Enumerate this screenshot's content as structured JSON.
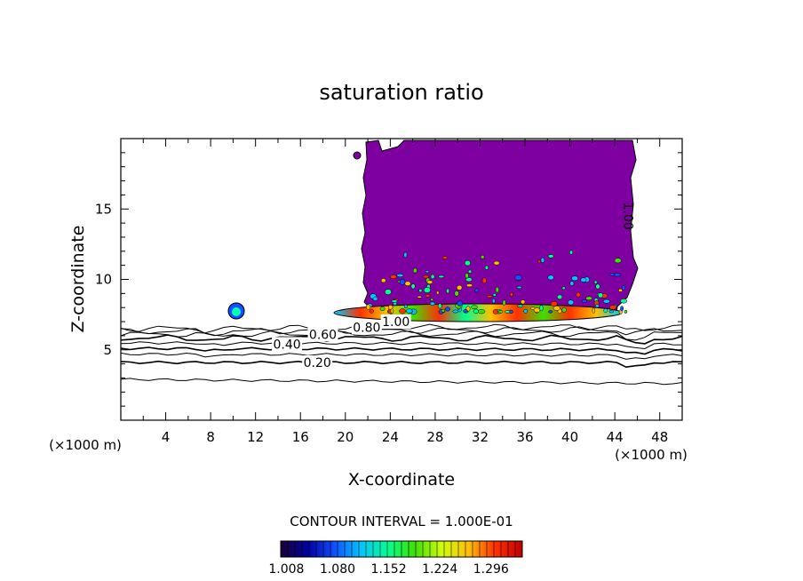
{
  "chart_data": {
    "type": "contour",
    "title": "saturation ratio",
    "xlabel": "X-coordinate",
    "ylabel": "Z-coordinate",
    "x_unit_left": "(×1000 m)",
    "x_unit_right": "(×1000 m)",
    "xlim": [
      0,
      50
    ],
    "ylim": [
      0,
      20
    ],
    "x_ticks": [
      "4",
      "8",
      "12",
      "16",
      "20",
      "24",
      "28",
      "32",
      "36",
      "40",
      "44",
      "48"
    ],
    "y_ticks": [
      "5",
      "10",
      "15"
    ],
    "contour_interval_text": "CONTOUR INTERVAL = 1.000E-01",
    "contour_labels": [
      {
        "text": "0.20",
        "x": 17.5,
        "z": 4.1
      },
      {
        "text": "0.40",
        "x": 14.8,
        "z": 5.4
      },
      {
        "text": "0.60",
        "x": 18.0,
        "z": 6.1
      },
      {
        "text": "0.80",
        "x": 21.9,
        "z": 6.6
      },
      {
        "text": "1.00",
        "x": 24.5,
        "z": 7.0
      },
      {
        "text": "1.00",
        "x": 45.2,
        "z": 14.5
      }
    ],
    "isolines_z_left": [
      2.9,
      4.1,
      4.7,
      5.1,
      5.5,
      5.85,
      6.1,
      6.3,
      6.5
    ],
    "isolines_z_right": [
      2.6,
      4.1,
      4.6,
      5.0,
      5.4,
      5.8,
      6.15,
      6.45,
      6.65
    ],
    "saturated_region": {
      "x_from": 21.5,
      "x_to": 46.0,
      "z_from": 7.6,
      "z_to": 20.0,
      "color": "#7e00a0"
    },
    "colorbar": {
      "labels": [
        "1.008",
        "1.080",
        "1.152",
        "1.224",
        "1.296"
      ],
      "range": [
        1.0,
        1.34
      ],
      "colors": [
        "#1a0033",
        "#0000a0",
        "#1050ff",
        "#00c8ff",
        "#00ff90",
        "#40e000",
        "#d0ff00",
        "#ffc000",
        "#ff3000",
        "#c00000"
      ]
    }
  }
}
